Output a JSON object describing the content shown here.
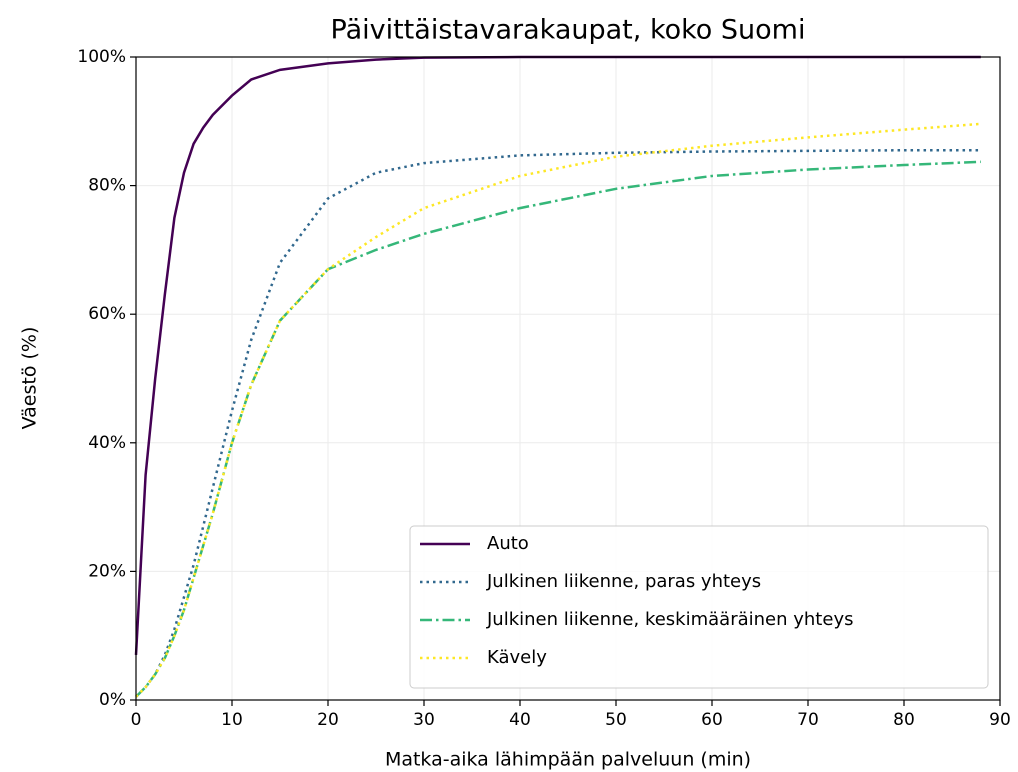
{
  "chart_data": {
    "type": "line",
    "title": "Päivittäistavarakaupat, koko Suomi",
    "xlabel": "Matka-aika lähimpään palveluun (min)",
    "ylabel": "Väestö (%)",
    "x": [
      0,
      1,
      2,
      3,
      4,
      5,
      6,
      7,
      8,
      10,
      12,
      15,
      20,
      25,
      30,
      40,
      50,
      60,
      70,
      80,
      88
    ],
    "series": [
      {
        "name": "Auto",
        "color": "#440154",
        "style": "solid",
        "values": [
          7,
          35,
          50,
          63,
          75,
          82,
          86.5,
          89,
          91,
          94,
          96.5,
          98,
          99,
          99.6,
          99.9,
          100,
          100,
          100,
          100,
          100,
          100
        ]
      },
      {
        "name": "Julkinen liikenne, paras yhteys",
        "color": "#31688e",
        "style": "dotted",
        "values": [
          0.5,
          2,
          4,
          7,
          11,
          16,
          21,
          27,
          33,
          45,
          56,
          68,
          78,
          82,
          83.5,
          84.7,
          85.1,
          85.3,
          85.4,
          85.5,
          85.5
        ]
      },
      {
        "name": "Julkinen liikenne, keskimääräinen yhteys",
        "color": "#35b779",
        "style": "dashdot",
        "values": [
          0.5,
          2,
          4,
          6.5,
          10,
          14,
          19,
          24,
          29,
          40,
          49,
          59,
          67,
          70,
          72.5,
          76.5,
          79.5,
          81.5,
          82.5,
          83.2,
          83.7
        ]
      },
      {
        "name": "Kävely",
        "color": "#fde725",
        "style": "dotted",
        "values": [
          0.5,
          2,
          4,
          6.5,
          10,
          14,
          19,
          24,
          29,
          40,
          49,
          59,
          67,
          72,
          76.5,
          81.5,
          84.5,
          86.2,
          87.5,
          88.7,
          89.6
        ]
      }
    ],
    "xlim": [
      0,
      90
    ],
    "xticks": [
      0,
      10,
      20,
      30,
      40,
      50,
      60,
      70,
      80,
      90
    ],
    "ylim": [
      0,
      100
    ],
    "yticks": [
      {
        "value": 0,
        "label": "0%"
      },
      {
        "value": 20,
        "label": "20%"
      },
      {
        "value": 40,
        "label": "40%"
      },
      {
        "value": 60,
        "label": "60%"
      },
      {
        "value": 80,
        "label": "80%"
      },
      {
        "value": 100,
        "label": "100%"
      }
    ],
    "grid": true,
    "legend": "lower right"
  }
}
